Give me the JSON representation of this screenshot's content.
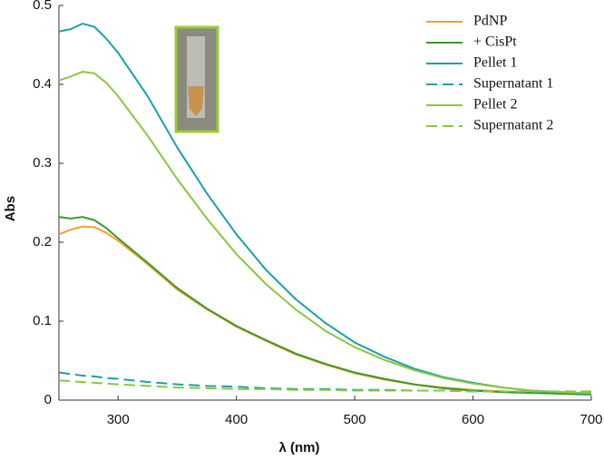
{
  "chart_data": {
    "type": "line",
    "xlabel": "λ (nm)",
    "ylabel": "Abs",
    "x": [
      250,
      260,
      270,
      280,
      290,
      300,
      325,
      350,
      375,
      400,
      425,
      450,
      475,
      500,
      525,
      550,
      575,
      600,
      625,
      650,
      675,
      700
    ],
    "xlim": [
      250,
      700
    ],
    "xticks": [
      300,
      400,
      500,
      600,
      700
    ],
    "ylim": [
      0,
      0.5
    ],
    "yticks": [
      0,
      0.1,
      0.2,
      0.3,
      0.4,
      0.5
    ],
    "legend": "upper right",
    "series": [
      {
        "name": "PdNP",
        "color": "#f5a033",
        "style": "solid",
        "values": [
          0.21,
          0.216,
          0.22,
          0.219,
          0.212,
          0.202,
          0.172,
          0.14,
          0.115,
          0.093,
          0.075,
          0.058,
          0.045,
          0.034,
          0.026,
          0.02,
          0.016,
          0.013,
          0.011,
          0.01,
          0.009,
          0.008
        ]
      },
      {
        "name": "+ CisPt",
        "color": "#3a9a2a",
        "style": "solid",
        "values": [
          0.232,
          0.23,
          0.232,
          0.228,
          0.218,
          0.205,
          0.174,
          0.142,
          0.116,
          0.094,
          0.076,
          0.059,
          0.046,
          0.035,
          0.027,
          0.02,
          0.015,
          0.012,
          0.01,
          0.009,
          0.008,
          0.007
        ]
      },
      {
        "name": "Pellet 1",
        "color": "#1ba0a8",
        "style": "solid",
        "values": [
          0.467,
          0.47,
          0.477,
          0.473,
          0.458,
          0.44,
          0.385,
          0.32,
          0.262,
          0.21,
          0.165,
          0.128,
          0.098,
          0.073,
          0.055,
          0.04,
          0.029,
          0.022,
          0.016,
          0.012,
          0.01,
          0.008
        ]
      },
      {
        "name": "Supernatant 1",
        "color": "#1ba0a8",
        "style": "dashed",
        "values": [
          0.035,
          0.033,
          0.031,
          0.03,
          0.028,
          0.027,
          0.023,
          0.02,
          0.018,
          0.017,
          0.015,
          0.014,
          0.014,
          0.013,
          0.013,
          0.012,
          0.012,
          0.011,
          0.011,
          0.01,
          0.01,
          0.01
        ]
      },
      {
        "name": "Pellet 2",
        "color": "#8cc63f",
        "style": "solid",
        "values": [
          0.405,
          0.41,
          0.416,
          0.414,
          0.402,
          0.385,
          0.335,
          0.28,
          0.23,
          0.185,
          0.147,
          0.115,
          0.088,
          0.067,
          0.051,
          0.038,
          0.028,
          0.021,
          0.016,
          0.012,
          0.01,
          0.009
        ]
      },
      {
        "name": "Supernatant 2",
        "color": "#8cc63f",
        "style": "dashed",
        "values": [
          0.025,
          0.024,
          0.023,
          0.022,
          0.021,
          0.02,
          0.018,
          0.016,
          0.015,
          0.014,
          0.014,
          0.013,
          0.013,
          0.012,
          0.012,
          0.012,
          0.012,
          0.011,
          0.011,
          0.011,
          0.011,
          0.011
        ]
      }
    ]
  }
}
